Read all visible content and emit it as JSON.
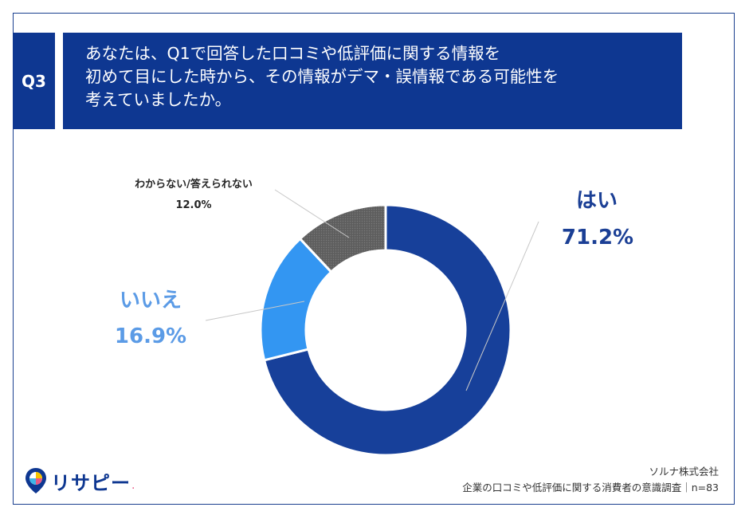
{
  "question": {
    "badge": "Q3",
    "lines": [
      "あなたは、Q1で回答した口コミや低評価に関する情報を",
      "初めて目にした時から、その情報がデマ・誤情報である可能性を",
      "考えていましたか。"
    ]
  },
  "chart_data": {
    "type": "pie",
    "donut": true,
    "start_angle_deg": 0,
    "direction": "clockwise",
    "slices": [
      {
        "label": "はい",
        "value": 71.2,
        "display": "71.2%",
        "color": "#17409a"
      },
      {
        "label": "いいえ",
        "value": 16.9,
        "display": "16.9%",
        "color": "#3396f2"
      },
      {
        "label": "わからない/答えられない",
        "value": 12.0,
        "display": "12.0%",
        "color": "#666666"
      }
    ],
    "legend": "none"
  },
  "logo": {
    "text": "リサピー",
    "dot": "."
  },
  "footer": {
    "company": "ソルナ株式会社",
    "survey": "企業の口コミや低評価に関する消費者の意識調査｜n=83"
  },
  "colors": {
    "brand": "#0e3791",
    "logo_accent": "#e95a86"
  }
}
